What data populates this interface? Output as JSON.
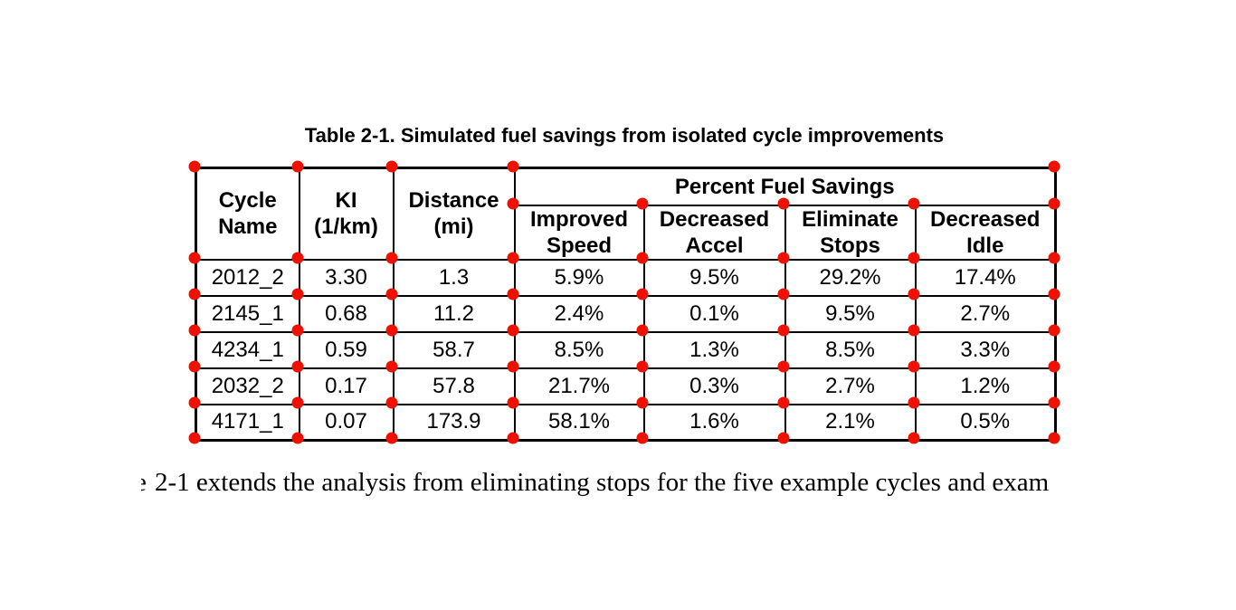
{
  "colors": {
    "background": "#ffffff",
    "table_border": "#000000",
    "text": "#000000",
    "grid_dot": "#ee1100"
  },
  "table": {
    "caption": "Table 2-1. Simulated fuel savings from isolated cycle improvements",
    "columns": [
      "Cycle\nName",
      "KI\n(1/km)",
      "Distance\n(mi)"
    ],
    "group_header": "Percent Fuel Savings",
    "sub_columns": [
      "Improved\nSpeed",
      "Decreased\nAccel",
      "Eliminate\nStops",
      "Decreased\nIdle"
    ],
    "rows": [
      [
        "2012_2",
        "3.30",
        "1.3",
        "5.9%",
        "9.5%",
        "29.2%",
        "17.4%"
      ],
      [
        "2145_1",
        "0.68",
        "11.2",
        "2.4%",
        "0.1%",
        "9.5%",
        "2.7%"
      ],
      [
        "4234_1",
        "0.59",
        "58.7",
        "8.5%",
        "1.3%",
        "8.5%",
        "3.3%"
      ],
      [
        "2032_2",
        "0.17",
        "57.8",
        "21.7%",
        "0.3%",
        "2.7%",
        "1.2%"
      ],
      [
        "4171_1",
        "0.07",
        "173.9",
        "58.1%",
        "1.6%",
        "2.1%",
        "0.5%"
      ]
    ]
  },
  "body_text": {
    "clipped_prefix": "e",
    "sentence": "2-1 extends the analysis from eliminating stops for the five example cycles and exam"
  }
}
